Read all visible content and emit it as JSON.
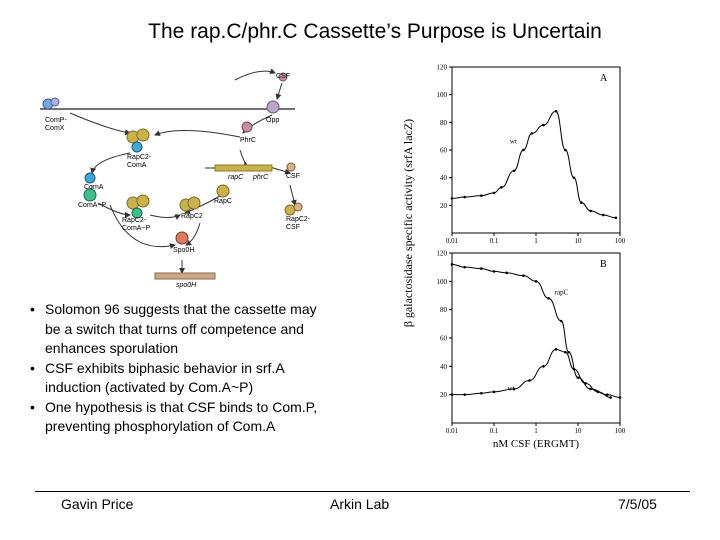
{
  "slide": {
    "title": "The rap.C/phr.C Cassette’s Purpose is Uncertain",
    "bullets": [
      "Solomon 96 suggests that the cassette may be a switch that turns off competence and enhances sporulation",
      "CSF exhibits biphasic behavior in srf.A induction (activated by Com.A~P)",
      "One hypothesis is that CSF binds to Com.P, preventing phosphorylation of Com.A"
    ],
    "footer": {
      "left": "Gavin Price",
      "center": "Arkin Lab",
      "right": "7/5/05"
    }
  },
  "diagram": {
    "labels": {
      "comp_comx": "ComP-\nComX",
      "csf_top": "CSF",
      "opp": "Opp",
      "phrc_protein": "PhrC",
      "rapc2_coma": "RapC2-\nComA",
      "coma": "ComA",
      "rapc_gene": "rapC",
      "phrc_gene": "phrC",
      "csf_right": "CSF",
      "coma_p": "ComA~P",
      "rapc_protein": "RapC",
      "rapc2_comap": "RapC2-\nComA~P",
      "rapc2": "RapC2",
      "rapc2_csf": "RapC2-\nCSF",
      "spo0h_protein": "Spo0H",
      "spo0h_gene": "spo0H"
    },
    "colors": {
      "rapc": "#c9b24a",
      "coma": "#3fa9d6",
      "comap": "#3fbf8a",
      "phrc": "#c58fa0",
      "csf": "#d9b488",
      "spo0h": "#e07a5f"
    }
  },
  "chart_data": [
    {
      "type": "line",
      "panel_label": "A",
      "ylabel": "β galactosidase specific activity (srfA lacZ)",
      "xscale": "log",
      "xlim": [
        0.01,
        100
      ],
      "ylim": [
        0,
        120
      ],
      "yticks": [
        20,
        40,
        60,
        80,
        100,
        120
      ],
      "xticklabels": [
        "0.01",
        "0.1",
        "1",
        "10",
        "100"
      ],
      "series": [
        {
          "name": "wt",
          "x": [
            0.01,
            0.02,
            0.05,
            0.1,
            0.15,
            0.3,
            0.5,
            0.8,
            1.5,
            3,
            5,
            8,
            12,
            20,
            40,
            80
          ],
          "y": [
            25,
            26,
            27,
            29,
            33,
            45,
            60,
            72,
            78,
            88,
            60,
            40,
            22,
            16,
            13,
            11
          ]
        }
      ]
    },
    {
      "type": "line",
      "panel_label": "B",
      "xlabel": "nM CSF (ERGMT)",
      "xscale": "log",
      "xlim": [
        0.01,
        100
      ],
      "ylim": [
        0,
        120
      ],
      "yticks": [
        20,
        40,
        60,
        80,
        100,
        120
      ],
      "xticklabels": [
        "0.01",
        "0.1",
        "1",
        "10",
        "100"
      ],
      "series": [
        {
          "name": "rapC",
          "x": [
            0.01,
            0.02,
            0.05,
            0.1,
            0.2,
            0.5,
            1,
            2,
            4,
            6,
            10,
            20,
            50,
            100
          ],
          "y": [
            112,
            110,
            109,
            107,
            106,
            104,
            100,
            88,
            72,
            50,
            32,
            24,
            20,
            18
          ]
        },
        {
          "name": "wt",
          "x": [
            0.01,
            0.02,
            0.05,
            0.1,
            0.3,
            0.7,
            1.5,
            3,
            5,
            8,
            15,
            30,
            60
          ],
          "y": [
            20,
            20,
            21,
            22,
            24,
            30,
            40,
            52,
            50,
            38,
            28,
            22,
            18
          ]
        }
      ]
    }
  ]
}
